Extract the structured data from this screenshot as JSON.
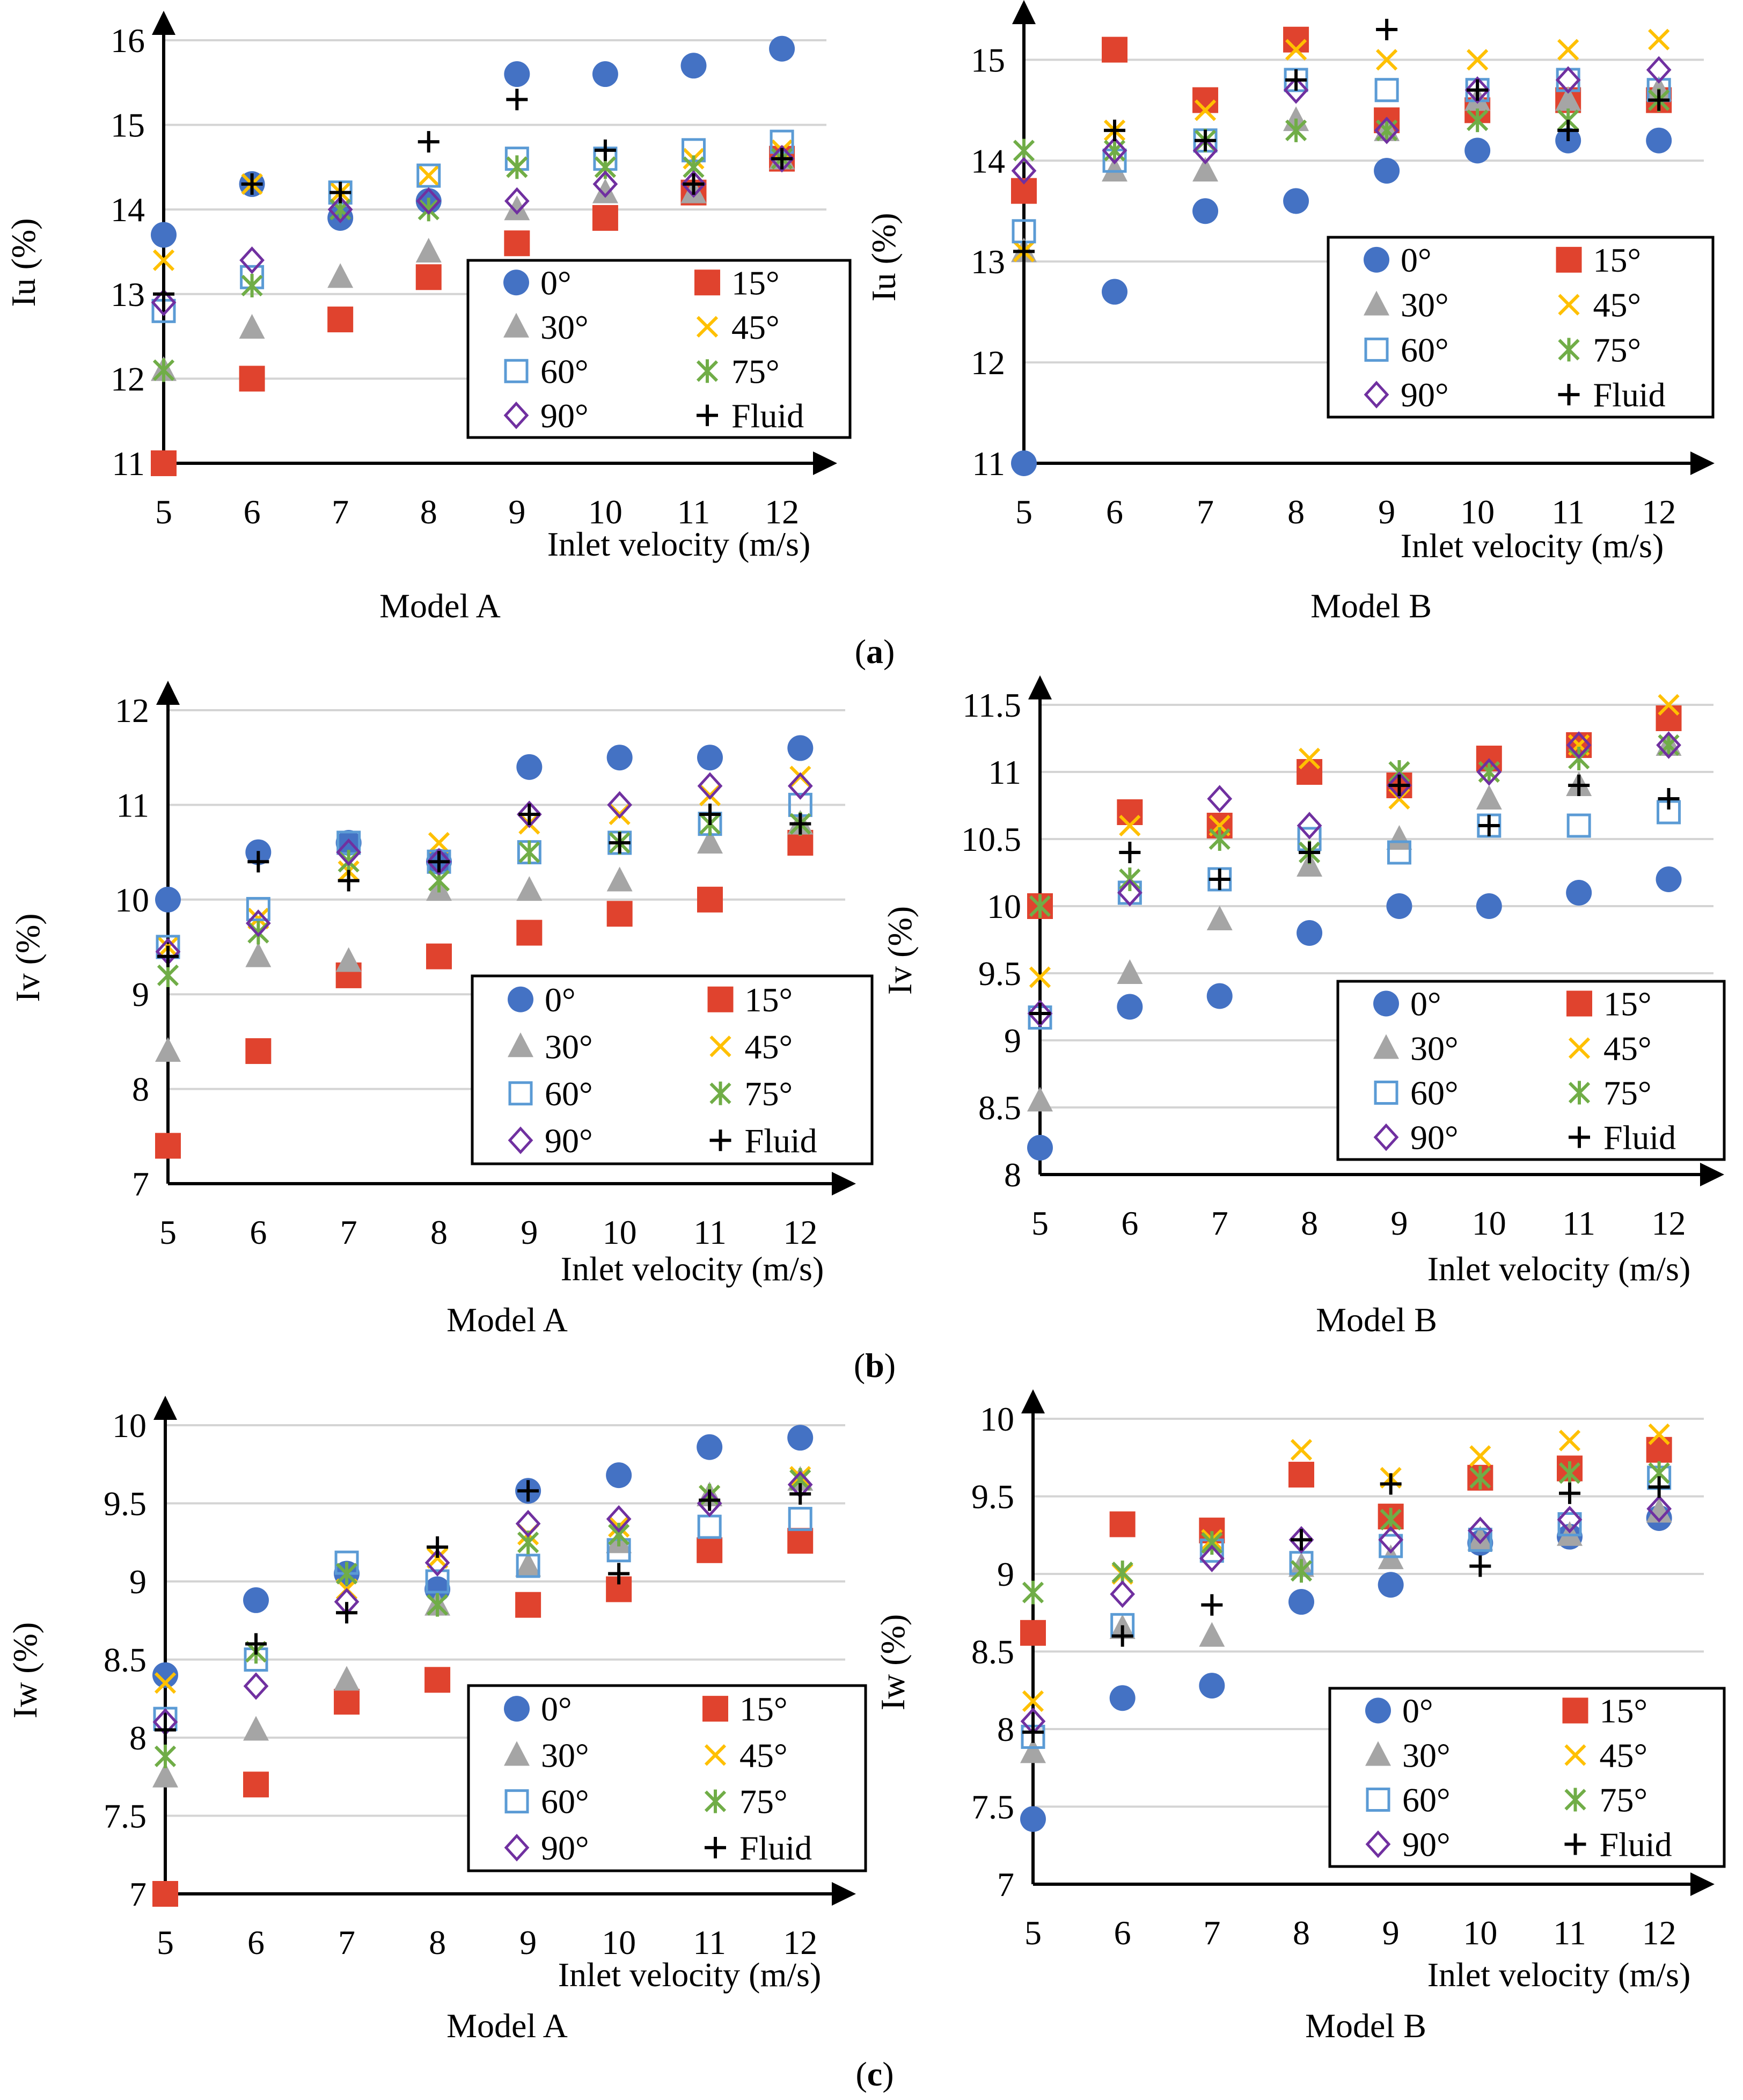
{
  "figure": {
    "panel_labels": [
      "(a)",
      "(b)",
      "(c)"
    ]
  },
  "legend_entries": [
    {
      "key": "s0",
      "label": "0°",
      "marker": "circle",
      "color": "#4472C4"
    },
    {
      "key": "s15",
      "label": "15°",
      "marker": "square",
      "color": "#E0432E"
    },
    {
      "key": "s30",
      "label": "30°",
      "marker": "triangle",
      "color": "#A5A5A5"
    },
    {
      "key": "s45",
      "label": "45°",
      "marker": "x",
      "color": "#FFC000"
    },
    {
      "key": "s60",
      "label": "60°",
      "marker": "open-square",
      "color": "#5B9BD5"
    },
    {
      "key": "s75",
      "label": "75°",
      "marker": "asterisk",
      "color": "#70AD47"
    },
    {
      "key": "s90",
      "label": "90°",
      "marker": "open-diamond",
      "color": "#7030A0"
    },
    {
      "key": "fluid",
      "label": "Fluid",
      "marker": "plus",
      "color": "#000000"
    }
  ],
  "chart_data": [
    {
      "id": "a_A",
      "type": "scatter",
      "title": "Model A",
      "panel": "(a)",
      "xlabel": "Inlet velocity (m/s)",
      "ylabel": "Iu (%)",
      "x": [
        5,
        6,
        7,
        8,
        9,
        10,
        11,
        12
      ],
      "ylim": [
        11,
        16
      ],
      "yticks": [
        "11",
        "12",
        "13",
        "14",
        "15",
        "16"
      ],
      "series": [
        {
          "key": "s0",
          "name": "0°",
          "values": [
            13.7,
            14.3,
            13.9,
            14.1,
            15.6,
            15.6,
            15.7,
            15.9
          ]
        },
        {
          "key": "s15",
          "name": "15°",
          "values": [
            11.0,
            12.0,
            12.7,
            13.2,
            13.6,
            13.9,
            14.2,
            14.6
          ]
        },
        {
          "key": "s30",
          "name": "30°",
          "values": [
            12.1,
            12.6,
            13.2,
            13.5,
            14.0,
            14.2,
            14.2,
            14.6
          ]
        },
        {
          "key": "s45",
          "name": "45°",
          "values": [
            13.4,
            14.3,
            14.2,
            14.4,
            14.5,
            14.5,
            14.6,
            14.7
          ]
        },
        {
          "key": "s60",
          "name": "60°",
          "values": [
            12.8,
            13.2,
            14.2,
            14.4,
            14.6,
            14.6,
            14.7,
            14.8
          ]
        },
        {
          "key": "s75",
          "name": "75°",
          "values": [
            12.1,
            13.1,
            14.0,
            14.0,
            14.5,
            14.5,
            14.5,
            14.6
          ]
        },
        {
          "key": "s90",
          "name": "90°",
          "values": [
            12.9,
            13.4,
            14.0,
            14.1,
            14.1,
            14.3,
            14.3,
            14.6
          ]
        },
        {
          "key": "fluid",
          "name": "Fluid",
          "values": [
            13.0,
            14.3,
            14.2,
            14.8,
            15.3,
            14.7,
            14.3,
            14.6
          ]
        }
      ]
    },
    {
      "id": "a_B",
      "type": "scatter",
      "title": "Model B",
      "panel": "(a)",
      "xlabel": "Inlet velocity (m/s)",
      "ylabel": "Iu (%)",
      "x": [
        5,
        6,
        7,
        8,
        9,
        10,
        11,
        12
      ],
      "ylim": [
        11,
        15.3
      ],
      "yticks": [
        "11",
        "12",
        "13",
        "14",
        "15"
      ],
      "series": [
        {
          "key": "s0",
          "name": "0°",
          "values": [
            11.0,
            12.7,
            13.5,
            13.6,
            13.9,
            14.1,
            14.2,
            14.2
          ]
        },
        {
          "key": "s15",
          "name": "15°",
          "values": [
            13.7,
            15.1,
            14.6,
            15.2,
            14.4,
            14.5,
            14.6,
            14.6
          ]
        },
        {
          "key": "s30",
          "name": "30°",
          "values": [
            13.1,
            13.9,
            13.9,
            14.4,
            14.3,
            14.6,
            14.6,
            14.7
          ]
        },
        {
          "key": "s45",
          "name": "45°",
          "values": [
            13.1,
            14.3,
            14.5,
            15.1,
            15.0,
            15.0,
            15.1,
            15.2
          ]
        },
        {
          "key": "s60",
          "name": "60°",
          "values": [
            13.3,
            14.0,
            14.2,
            14.8,
            14.7,
            14.7,
            14.8,
            14.7
          ]
        },
        {
          "key": "s75",
          "name": "75°",
          "values": [
            14.1,
            14.1,
            14.2,
            14.3,
            14.3,
            14.4,
            14.4,
            14.6
          ]
        },
        {
          "key": "s90",
          "name": "90°",
          "values": [
            13.9,
            14.1,
            14.1,
            14.7,
            14.3,
            14.7,
            14.8,
            14.9
          ]
        },
        {
          "key": "fluid",
          "name": "Fluid",
          "values": [
            13.1,
            14.3,
            14.2,
            14.8,
            15.3,
            14.7,
            14.3,
            14.6
          ]
        }
      ]
    },
    {
      "id": "b_A",
      "type": "scatter",
      "title": "Model A",
      "panel": "(b)",
      "xlabel": "Inlet velocity (m/s)",
      "ylabel": "Iv (%)",
      "x": [
        5,
        6,
        7,
        8,
        9,
        10,
        11,
        12
      ],
      "ylim": [
        7,
        12
      ],
      "yticks": [
        "7",
        "8",
        "9",
        "10",
        "11",
        "12"
      ],
      "series": [
        {
          "key": "s0",
          "name": "0°",
          "values": [
            10.0,
            10.5,
            10.6,
            10.4,
            11.4,
            11.5,
            11.5,
            11.6
          ]
        },
        {
          "key": "s15",
          "name": "15°",
          "values": [
            7.4,
            8.4,
            9.2,
            9.4,
            9.65,
            9.85,
            10.0,
            10.6
          ]
        },
        {
          "key": "s30",
          "name": "30°",
          "values": [
            8.4,
            9.4,
            9.35,
            10.1,
            10.1,
            10.2,
            10.6,
            10.8
          ]
        },
        {
          "key": "s45",
          "name": "45°",
          "values": [
            9.5,
            9.8,
            10.3,
            10.6,
            10.8,
            10.9,
            11.1,
            11.3
          ]
        },
        {
          "key": "s60",
          "name": "60°",
          "values": [
            9.5,
            9.9,
            10.6,
            10.4,
            10.5,
            10.6,
            10.8,
            11.0
          ]
        },
        {
          "key": "s75",
          "name": "75°",
          "values": [
            9.2,
            9.65,
            10.4,
            10.2,
            10.5,
            10.6,
            10.8,
            10.8
          ]
        },
        {
          "key": "s90",
          "name": "90°",
          "values": [
            9.45,
            9.75,
            10.5,
            10.4,
            10.9,
            11.0,
            11.2,
            11.2
          ]
        },
        {
          "key": "fluid",
          "name": "Fluid",
          "values": [
            9.4,
            10.4,
            10.2,
            10.4,
            10.9,
            10.6,
            10.9,
            10.8
          ]
        }
      ]
    },
    {
      "id": "b_B",
      "type": "scatter",
      "title": "Model B",
      "panel": "(b)",
      "xlabel": "Inlet velocity (m/s)",
      "ylabel": "Iv (%)",
      "x": [
        5,
        6,
        7,
        8,
        9,
        10,
        11,
        12
      ],
      "ylim": [
        8,
        11.5
      ],
      "yticks": [
        "8",
        "8.5",
        "9",
        "9.5",
        "10",
        "10.5",
        "11",
        "11.5"
      ],
      "series": [
        {
          "key": "s0",
          "name": "0°",
          "values": [
            8.2,
            9.25,
            9.33,
            9.8,
            10.0,
            10.0,
            10.1,
            10.2
          ]
        },
        {
          "key": "s15",
          "name": "15°",
          "values": [
            10.0,
            10.7,
            10.6,
            11.0,
            10.9,
            11.1,
            11.2,
            11.4
          ]
        },
        {
          "key": "s30",
          "name": "30°",
          "values": [
            8.55,
            9.5,
            9.9,
            10.3,
            10.5,
            10.8,
            10.9,
            11.2
          ]
        },
        {
          "key": "s45",
          "name": "45°",
          "values": [
            9.47,
            10.6,
            10.6,
            11.1,
            10.8,
            11.0,
            11.2,
            11.5
          ]
        },
        {
          "key": "s60",
          "name": "60°",
          "values": [
            9.17,
            10.1,
            10.2,
            10.5,
            10.4,
            10.6,
            10.6,
            10.7
          ]
        },
        {
          "key": "s75",
          "name": "75°",
          "values": [
            10.0,
            10.2,
            10.5,
            10.4,
            11.0,
            11.0,
            11.1,
            11.2
          ]
        },
        {
          "key": "s90",
          "name": "90°",
          "values": [
            9.2,
            10.1,
            10.8,
            10.6,
            10.9,
            11.0,
            11.2,
            11.2
          ]
        },
        {
          "key": "fluid",
          "name": "Fluid",
          "values": [
            9.2,
            10.4,
            10.2,
            10.4,
            10.9,
            10.6,
            10.9,
            10.8
          ]
        }
      ]
    },
    {
      "id": "c_A",
      "type": "scatter",
      "title": "Model A",
      "panel": "(c)",
      "xlabel": "Inlet velocity (m/s)",
      "ylabel": "Iw (%)",
      "x": [
        5,
        6,
        7,
        8,
        9,
        10,
        11,
        12
      ],
      "ylim": [
        7,
        10
      ],
      "yticks": [
        "7",
        "7.5",
        "8",
        "8.5",
        "9",
        "9.5",
        "10"
      ],
      "series": [
        {
          "key": "s0",
          "name": "0°",
          "values": [
            8.4,
            8.88,
            9.05,
            8.95,
            9.58,
            9.68,
            9.86,
            9.92
          ]
        },
        {
          "key": "s15",
          "name": "15°",
          "values": [
            7.0,
            7.7,
            8.23,
            8.37,
            8.85,
            8.95,
            9.2,
            9.26
          ]
        },
        {
          "key": "s30",
          "name": "30°",
          "values": [
            7.75,
            8.05,
            8.37,
            8.85,
            9.1,
            9.25,
            9.55,
            9.65
          ]
        },
        {
          "key": "s45",
          "name": "45°",
          "values": [
            8.35,
            8.55,
            8.95,
            9.15,
            9.3,
            9.35,
            9.55,
            9.67
          ]
        },
        {
          "key": "s60",
          "name": "60°",
          "values": [
            8.12,
            8.5,
            9.12,
            9.0,
            9.1,
            9.2,
            9.35,
            9.4
          ]
        },
        {
          "key": "s75",
          "name": "75°",
          "values": [
            7.88,
            8.55,
            9.05,
            8.85,
            9.25,
            9.3,
            9.55,
            9.65
          ]
        },
        {
          "key": "s90",
          "name": "90°",
          "values": [
            8.1,
            8.33,
            8.87,
            9.12,
            9.37,
            9.4,
            9.5,
            9.62
          ]
        },
        {
          "key": "fluid",
          "name": "Fluid",
          "values": [
            8.05,
            8.6,
            8.8,
            9.22,
            9.58,
            9.05,
            9.52,
            9.56
          ]
        }
      ]
    },
    {
      "id": "c_B",
      "type": "scatter",
      "title": "Model B",
      "panel": "(c)",
      "xlabel": "Inlet velocity (m/s)",
      "ylabel": "Iw (%)",
      "x": [
        5,
        6,
        7,
        8,
        9,
        10,
        11,
        12
      ],
      "ylim": [
        7,
        10
      ],
      "yticks": [
        "7",
        "7.5",
        "8",
        "8.5",
        "9",
        "9.5",
        "10"
      ],
      "series": [
        {
          "key": "s0",
          "name": "0°",
          "values": [
            7.42,
            8.2,
            8.28,
            8.82,
            8.93,
            9.2,
            9.24,
            9.36
          ]
        },
        {
          "key": "s15",
          "name": "15°",
          "values": [
            8.62,
            9.32,
            9.28,
            9.64,
            9.37,
            9.62,
            9.68,
            9.8
          ]
        },
        {
          "key": "s30",
          "name": "30°",
          "values": [
            7.85,
            8.65,
            8.6,
            9.05,
            9.1,
            9.22,
            9.25,
            9.4
          ]
        },
        {
          "key": "s45",
          "name": "45°",
          "values": [
            8.18,
            9.0,
            9.22,
            9.8,
            9.62,
            9.76,
            9.86,
            9.9
          ]
        },
        {
          "key": "s60",
          "name": "60°",
          "values": [
            7.95,
            8.67,
            9.15,
            9.07,
            9.18,
            9.22,
            9.32,
            9.62
          ]
        },
        {
          "key": "s75",
          "name": "75°",
          "values": [
            8.88,
            9.01,
            9.2,
            9.02,
            9.35,
            9.62,
            9.65,
            9.65
          ]
        },
        {
          "key": "s90",
          "name": "90°",
          "values": [
            8.05,
            8.87,
            9.1,
            9.22,
            9.22,
            9.28,
            9.35,
            9.42
          ]
        },
        {
          "key": "fluid",
          "name": "Fluid",
          "values": [
            7.98,
            8.6,
            8.8,
            9.22,
            9.58,
            9.05,
            9.52,
            9.56
          ]
        }
      ]
    }
  ]
}
